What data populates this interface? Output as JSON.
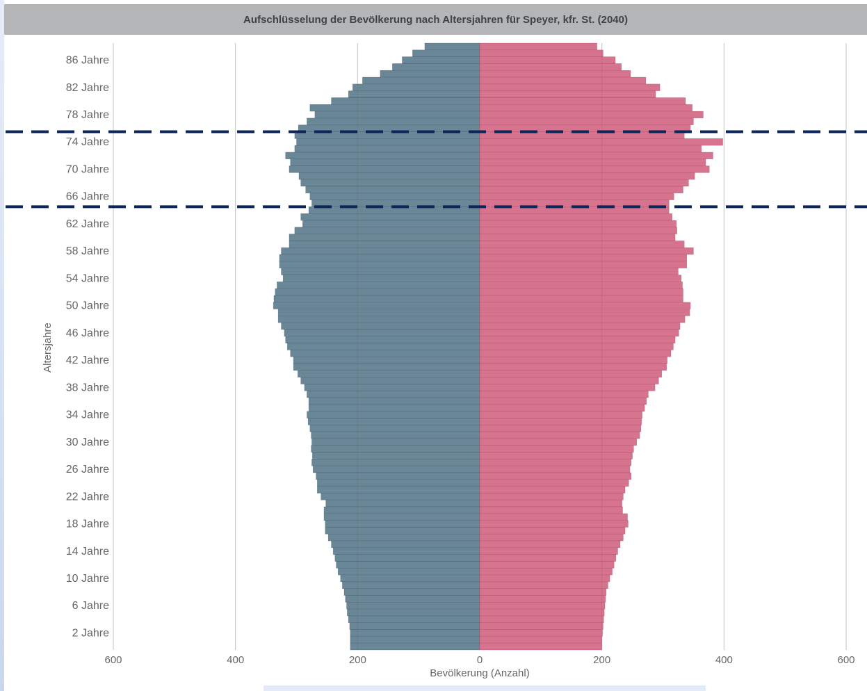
{
  "chart_data": {
    "type": "bar",
    "orientation": "population-pyramid",
    "title": "Aufschlüsselung der Bevölkerung nach Altersjahren für Speyer, kfr. St. (2040)",
    "xlabel": "Bevölkerung (Anzahl)",
    "ylabel": "Altersjahre",
    "xlim": [
      -600,
      600
    ],
    "x_ticks": [
      -600,
      -400,
      -200,
      0,
      200,
      400,
      600
    ],
    "x_tick_labels": [
      "600",
      "400",
      "200",
      "0",
      "200",
      "400",
      "600"
    ],
    "y_tick_labels": [
      "86 Jahre",
      "82 Jahre",
      "78 Jahre",
      "74 Jahre",
      "70 Jahre",
      "66 Jahre",
      "62 Jahre",
      "58 Jahre",
      "54 Jahre",
      "50 Jahre",
      "46 Jahre",
      "42 Jahre",
      "38 Jahre",
      "34 Jahre",
      "30 Jahre",
      "26 Jahre",
      "22 Jahre",
      "18 Jahre",
      "14 Jahre",
      "10 Jahre",
      "6 Jahre",
      "2 Jahre"
    ],
    "age_top": 88,
    "ages_descending_from_top": true,
    "grid": true,
    "series": [
      {
        "color": "#6a8797",
        "side": "left",
        "values": [
          90,
          110,
          127,
          143,
          163,
          192,
          208,
          215,
          243,
          278,
          270,
          283,
          297,
          303,
          300,
          303,
          318,
          310,
          312,
          296,
          293,
          285,
          278,
          275,
          280,
          293,
          290,
          303,
          312,
          312,
          325,
          328,
          328,
          325,
          322,
          332,
          335,
          337,
          338,
          330,
          330,
          325,
          320,
          318,
          315,
          310,
          305,
          305,
          298,
          293,
          287,
          283,
          280,
          280,
          283,
          281,
          278,
          276,
          275,
          276,
          274,
          275,
          273,
          268,
          266,
          266,
          260,
          252,
          255,
          255,
          253,
          253,
          248,
          243,
          240,
          237,
          235,
          232,
          228,
          225,
          222,
          220,
          218,
          217,
          215,
          213,
          212,
          212,
          212
        ]
      },
      {
        "color": "#d6738e",
        "side": "right",
        "values": [
          192,
          202,
          222,
          232,
          247,
          272,
          295,
          288,
          337,
          348,
          366,
          350,
          345,
          335,
          398,
          363,
          382,
          370,
          376,
          352,
          342,
          333,
          318,
          310,
          310,
          315,
          322,
          323,
          320,
          335,
          350,
          339,
          339,
          325,
          330,
          332,
          333,
          333,
          345,
          344,
          336,
          328,
          326,
          320,
          317,
          313,
          307,
          306,
          298,
          293,
          287,
          276,
          273,
          270,
          266,
          265,
          264,
          262,
          257,
          252,
          250,
          248,
          246,
          248,
          244,
          238,
          235,
          233,
          234,
          242,
          243,
          238,
          235,
          230,
          226,
          223,
          220,
          217,
          213,
          210,
          207,
          206,
          205,
          204,
          203,
          202,
          201,
          200,
          200
        ]
      }
    ],
    "annotations": [
      {
        "kind": "dashed-horizontal-line",
        "color": "#0d2657",
        "between_ages": [
          76,
          75
        ]
      },
      {
        "kind": "dashed-horizontal-line",
        "color": "#0d2657",
        "between_ages": [
          65,
          64
        ]
      }
    ]
  }
}
